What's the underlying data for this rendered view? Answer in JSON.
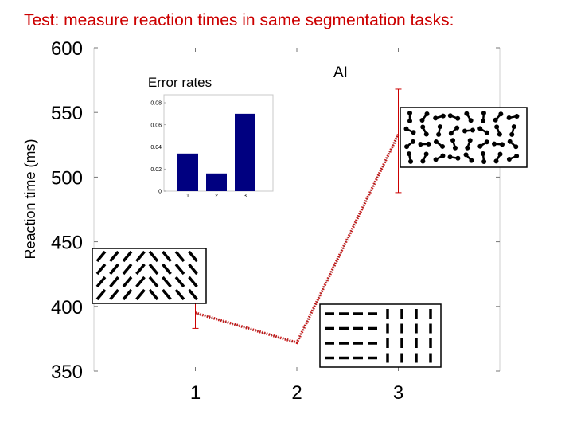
{
  "slide": {
    "title": "Test: measure reaction times in same segmentation tasks:"
  },
  "chart_data": [
    {
      "type": "line",
      "title": "",
      "xlabel": "",
      "ylabel": "Reaction time (ms)",
      "x": [
        1,
        2,
        3
      ],
      "xticks": [
        "1",
        "2",
        "3"
      ],
      "yticks": [
        "350",
        "400",
        "450",
        "500",
        "550",
        "600"
      ],
      "ylim": [
        350,
        600
      ],
      "xlim": [
        0,
        4
      ],
      "series": [
        {
          "values": [
            395,
            372,
            533
          ],
          "error_low": [
            383,
            null,
            488
          ],
          "error_high": [
            405,
            null,
            568
          ],
          "color": "#cc0000",
          "style": "dotted"
        }
      ],
      "annotations": [
        {
          "text": "AI",
          "x": 2.45,
          "y": 578
        }
      ],
      "grid": false
    },
    {
      "type": "bar",
      "title": "Error rates",
      "categories": [
        "1",
        "2",
        "3"
      ],
      "values": [
        0.034,
        0.016,
        0.07
      ],
      "yticks": [
        "0",
        "0.02",
        "0.04",
        "0.06",
        "0.08"
      ],
      "ylim": [
        0,
        0.08
      ],
      "color": "#000080"
    }
  ]
}
